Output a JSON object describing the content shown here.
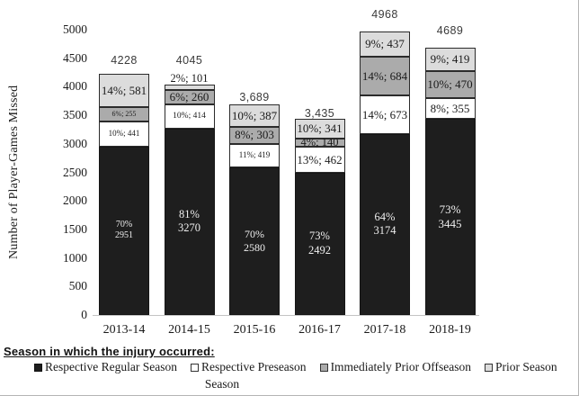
{
  "colors": {
    "regular": "#1e1e1e",
    "preseason": "#ffffff",
    "offseason": "#ababab",
    "prior": "#dcdcdc",
    "segment_border": "#2b2b2b",
    "axis_line": "#c4c4c4",
    "total_label": "#3a3a3a"
  },
  "chart_data": {
    "type": "bar",
    "stacked": true,
    "title": "",
    "xlabel": "",
    "ylabel": "Number of Player-Games Missed",
    "ylim": [
      0,
      5000
    ],
    "ytick_step": 500,
    "yticks": [
      "0",
      "500",
      "1000",
      "1500",
      "2000",
      "2500",
      "3000",
      "3500",
      "4000",
      "4500",
      "5000"
    ],
    "grid": false,
    "legend_position": "bottom",
    "legend_title": "Season in which the injury occurred:",
    "legend_wrap": "Season",
    "categories": [
      "2013-14",
      "2014-15",
      "2015-16",
      "2016-17",
      "2017-18",
      "2018-19"
    ],
    "totals": [
      "4228",
      "4045",
      "3,689",
      "3,435",
      "4968",
      "4689"
    ],
    "series": [
      {
        "name": "Respective Regular Season",
        "key": "regular",
        "values": [
          2951,
          3270,
          2580,
          2492,
          3174,
          3445
        ],
        "pcts": [
          "70%",
          "81%",
          "70%",
          "73%",
          "64%",
          "73%"
        ]
      },
      {
        "name": "Respective Preseason",
        "key": "preseason",
        "values": [
          441,
          414,
          419,
          462,
          673,
          355
        ],
        "pcts": [
          "10%",
          "10%",
          "11%",
          "13%",
          "14%",
          "8%"
        ]
      },
      {
        "name": "Immediately Prior Offseason",
        "key": "offseason",
        "values": [
          255,
          260,
          303,
          140,
          684,
          470
        ],
        "pcts": [
          "6%",
          "6%",
          "8%",
          "4%",
          "14%",
          "10%"
        ]
      },
      {
        "name": "Prior Season",
        "key": "prior",
        "values": [
          581,
          101,
          387,
          341,
          437,
          419
        ],
        "pcts": [
          "14%",
          "2%",
          "10%",
          "10%",
          "9%",
          "9%"
        ]
      }
    ]
  }
}
